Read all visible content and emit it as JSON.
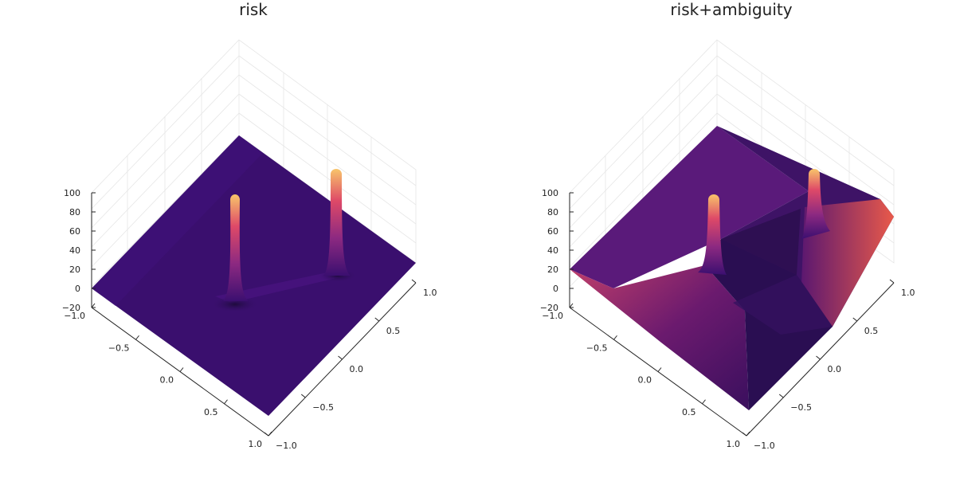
{
  "chart_data": [
    {
      "type": "surface",
      "title": "risk",
      "x_ticks": [
        "−1.0",
        "−0.5",
        "0.0",
        "0.5",
        "1.0"
      ],
      "y_ticks": [
        "−1.0",
        "−0.5",
        "0.0",
        "0.5",
        "1.0"
      ],
      "z_ticks": [
        "−20",
        "0",
        "20",
        "40",
        "60",
        "80",
        "100"
      ],
      "xlim": [
        -1,
        1
      ],
      "ylim": [
        -1,
        1
      ],
      "zlim": [
        -20,
        100
      ],
      "colormap": "inferno",
      "peaks": [
        {
          "x": -0.2,
          "y": 0.1,
          "z": 100
        },
        {
          "x": 0.5,
          "y": -0.3,
          "z": 100
        }
      ],
      "base_level": 0
    },
    {
      "type": "surface",
      "title": "risk+ambiguity",
      "x_ticks": [
        "−1.0",
        "−0.5",
        "0.0",
        "0.5",
        "1.0"
      ],
      "y_ticks": [
        "−1.0",
        "−0.5",
        "0.0",
        "0.5",
        "1.0"
      ],
      "z_ticks": [
        "−20",
        "0",
        "20",
        "40",
        "60",
        "80",
        "100"
      ],
      "xlim": [
        -1,
        1
      ],
      "ylim": [
        -1,
        1
      ],
      "zlim": [
        -20,
        100
      ],
      "colormap": "inferno",
      "peaks": [
        {
          "x": -0.2,
          "y": 0.1,
          "z": 100
        },
        {
          "x": 0.5,
          "y": -0.3,
          "z": 100
        }
      ],
      "corner_levels": {
        "left": 20,
        "right": 40,
        "back": 5,
        "front": -5
      }
    }
  ],
  "colors": {
    "surface_base": "#3a0f6e",
    "surface_mid": "#7a1c6d",
    "surface_hot": "#e0564a",
    "peak_top": "#f3c46a"
  }
}
